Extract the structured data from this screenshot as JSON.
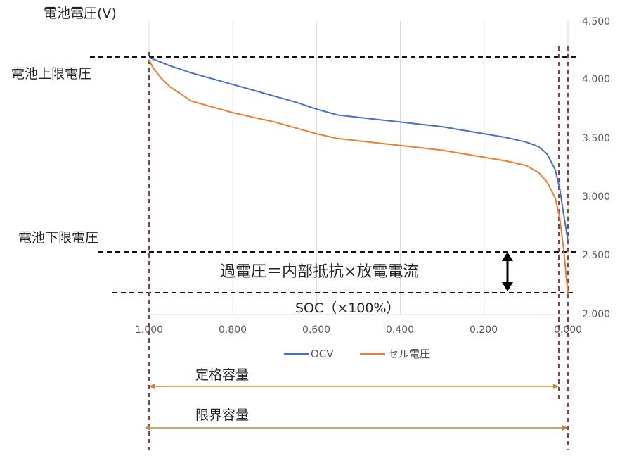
{
  "chart_data": {
    "type": "line",
    "ylabel": "電池電圧(V)",
    "xlabel": "SOC（×100%）",
    "x_reversed": true,
    "xlim": [
      1.0,
      0.0
    ],
    "ylim": [
      2.0,
      4.5
    ],
    "x_ticks": [
      "1.000",
      "0.800",
      "0.600",
      "0.400",
      "0.200",
      "0.000"
    ],
    "y_ticks": [
      "4.500",
      "4.000",
      "3.500",
      "3.000",
      "2.500",
      "2.000"
    ],
    "grid": "vertical",
    "legend_position": "bottom",
    "series": [
      {
        "name": "OCV",
        "color": "#4472C4",
        "points": [
          [
            1.0,
            4.19
          ],
          [
            0.95,
            4.12
          ],
          [
            0.9,
            4.06
          ],
          [
            0.85,
            4.01
          ],
          [
            0.8,
            3.96
          ],
          [
            0.75,
            3.91
          ],
          [
            0.7,
            3.86
          ],
          [
            0.65,
            3.81
          ],
          [
            0.6,
            3.75
          ],
          [
            0.55,
            3.7
          ],
          [
            0.5,
            3.68
          ],
          [
            0.45,
            3.66
          ],
          [
            0.4,
            3.64
          ],
          [
            0.35,
            3.62
          ],
          [
            0.3,
            3.6
          ],
          [
            0.25,
            3.57
          ],
          [
            0.2,
            3.54
          ],
          [
            0.15,
            3.51
          ],
          [
            0.1,
            3.47
          ],
          [
            0.07,
            3.43
          ],
          [
            0.05,
            3.37
          ],
          [
            0.03,
            3.23
          ],
          [
            0.02,
            3.08
          ],
          [
            0.01,
            2.85
          ],
          [
            0.0,
            2.63
          ]
        ]
      },
      {
        "name": "セル電圧",
        "color": "#ED7D31",
        "points": [
          [
            1.0,
            4.17
          ],
          [
            0.99,
            4.1
          ],
          [
            0.97,
            4.01
          ],
          [
            0.95,
            3.94
          ],
          [
            0.92,
            3.87
          ],
          [
            0.9,
            3.82
          ],
          [
            0.85,
            3.77
          ],
          [
            0.8,
            3.72
          ],
          [
            0.75,
            3.68
          ],
          [
            0.7,
            3.64
          ],
          [
            0.65,
            3.59
          ],
          [
            0.6,
            3.54
          ],
          [
            0.55,
            3.5
          ],
          [
            0.5,
            3.48
          ],
          [
            0.45,
            3.46
          ],
          [
            0.4,
            3.44
          ],
          [
            0.35,
            3.42
          ],
          [
            0.3,
            3.4
          ],
          [
            0.25,
            3.37
          ],
          [
            0.2,
            3.34
          ],
          [
            0.15,
            3.31
          ],
          [
            0.1,
            3.27
          ],
          [
            0.07,
            3.21
          ],
          [
            0.05,
            3.13
          ],
          [
            0.03,
            2.99
          ],
          [
            0.02,
            2.83
          ],
          [
            0.01,
            2.55
          ],
          [
            0.0,
            2.17
          ]
        ]
      }
    ],
    "reference_lines": {
      "upper_voltage": {
        "label": "電池上限電圧",
        "y": 4.19
      },
      "lower_voltage": {
        "label": "電池下限電圧",
        "y": 2.52
      },
      "overvoltage_floor": {
        "y": 2.17
      },
      "start_soc": {
        "x": 1.0
      },
      "rated_end_soc": {
        "x": 0.025
      },
      "limit_end_soc": {
        "x": 0.0
      }
    },
    "annotations": {
      "overvoltage": "過電圧＝内部抵抗×放電電流",
      "rated_capacity": "定格容量",
      "limit_capacity": "限界容量"
    }
  }
}
